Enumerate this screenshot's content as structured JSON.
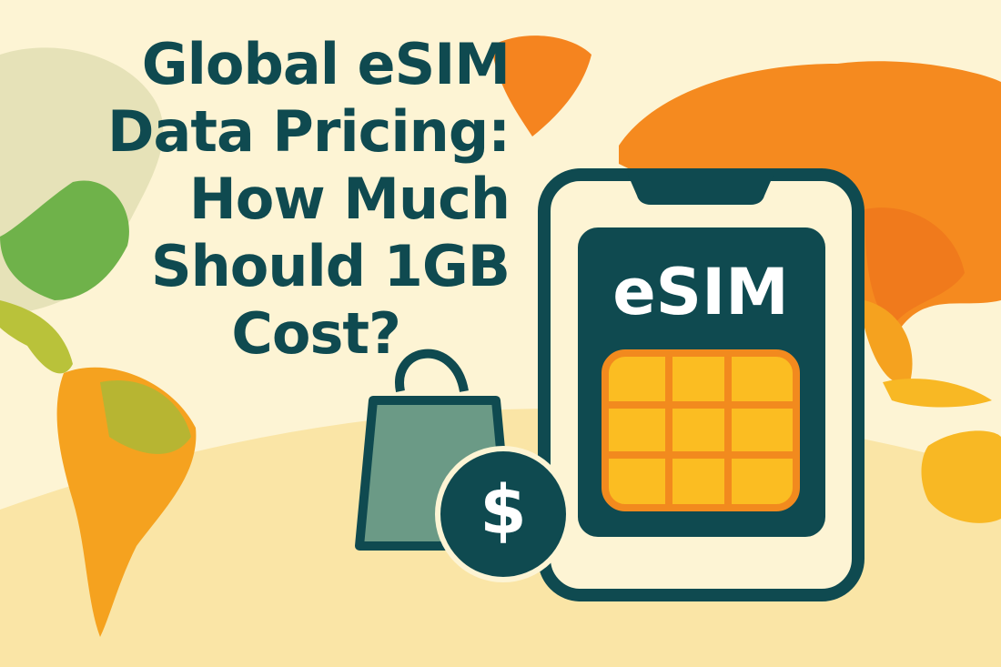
{
  "title": {
    "lines": [
      "Global eSIM",
      "Data Pricing:",
      "How Much",
      "Should 1GB",
      "Cost?"
    ]
  },
  "phone": {
    "screen_label": "eSIM",
    "icon": "esim-chip-icon"
  },
  "coin": {
    "symbol": "$",
    "icon": "dollar-coin-icon"
  },
  "bag": {
    "icon": "shopping-bag-icon"
  },
  "colors": {
    "background": "#fdf4d4",
    "text": "#0f4a50",
    "phone_outline": "#0f4a50",
    "chip_border": "#f28a1e",
    "chip_cells": "#fbbd22",
    "bag": "#6b9a86",
    "map_orange": "#f5841f",
    "map_green": "#6fb24a"
  }
}
